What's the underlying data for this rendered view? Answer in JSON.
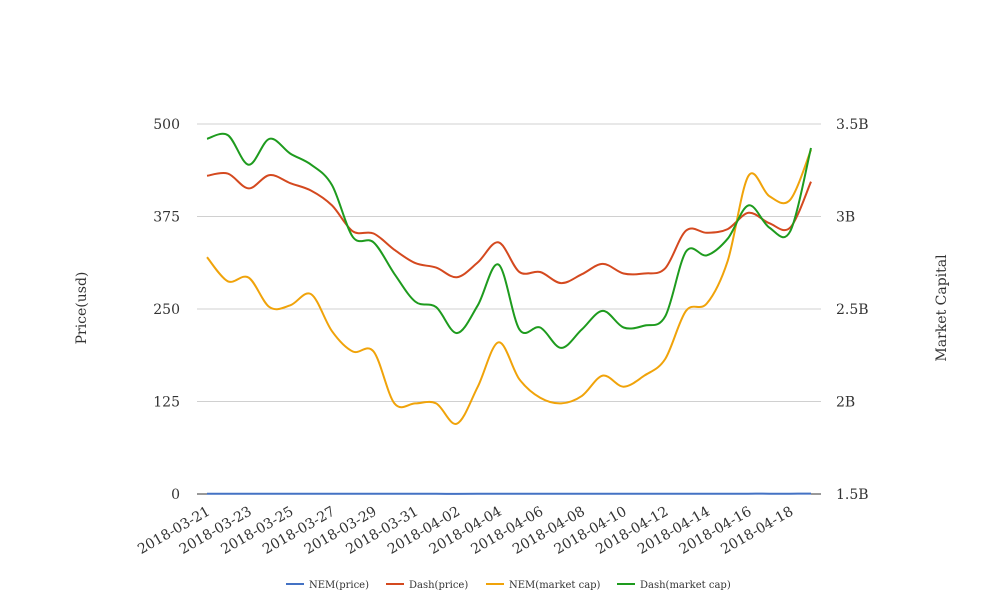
{
  "chart_data": {
    "type": "line",
    "x": [
      "2018-03-21",
      "2018-03-22",
      "2018-03-23",
      "2018-03-24",
      "2018-03-25",
      "2018-03-26",
      "2018-03-27",
      "2018-03-28",
      "2018-03-29",
      "2018-03-30",
      "2018-03-31",
      "2018-04-01",
      "2018-04-02",
      "2018-04-03",
      "2018-04-04",
      "2018-04-05",
      "2018-04-06",
      "2018-04-07",
      "2018-04-08",
      "2018-04-09",
      "2018-04-10",
      "2018-04-11",
      "2018-04-12",
      "2018-04-13",
      "2018-04-14",
      "2018-04-15",
      "2018-04-16",
      "2018-04-17",
      "2018-04-18",
      "2018-04-19"
    ],
    "x_tick_labels": [
      "2018-03-21",
      "2018-03-23",
      "2018-03-25",
      "2018-03-27",
      "2018-03-29",
      "2018-03-31",
      "2018-04-02",
      "2018-04-04",
      "2018-04-06",
      "2018-04-08",
      "2018-04-10",
      "2018-04-12",
      "2018-04-14",
      "2018-04-16",
      "2018-04-18"
    ],
    "ylabel": "Price(usd)",
    "y2label": "Market Capital",
    "ylim": [
      0,
      500
    ],
    "y2lim": [
      1500000000,
      3500000000
    ],
    "y_ticks": [
      "0",
      "125",
      "250",
      "375",
      "500"
    ],
    "y2_ticks": [
      "1.5B",
      "2B",
      "2.5B",
      "3B",
      "3.5B"
    ],
    "grid": true,
    "legend_position": "bottom",
    "series": [
      {
        "name": "NEM(price)",
        "axis": "left",
        "color": "#4472c4",
        "values": [
          0.38,
          0.37,
          0.36,
          0.34,
          0.35,
          0.34,
          0.31,
          0.26,
          0.26,
          0.22,
          0.21,
          0.21,
          0.2,
          0.23,
          0.28,
          0.24,
          0.22,
          0.21,
          0.22,
          0.25,
          0.24,
          0.25,
          0.27,
          0.33,
          0.34,
          0.41,
          0.47,
          0.43,
          0.42,
          0.5
        ]
      },
      {
        "name": "Dash(price)",
        "axis": "left",
        "color": "#d4491f",
        "values": [
          430,
          433,
          413,
          431,
          420,
          410,
          390,
          355,
          352,
          330,
          312,
          306,
          293,
          313,
          340,
          300,
          300,
          285,
          297,
          311,
          298,
          298,
          305,
          356,
          353,
          358,
          380,
          366,
          360,
          422
        ]
      },
      {
        "name": "NEM(market cap)",
        "axis": "right",
        "color": "#f0a30a",
        "values": [
          2780000000,
          2650000000,
          2670000000,
          2510000000,
          2520000000,
          2580000000,
          2380000000,
          2270000000,
          2270000000,
          1990000000,
          1990000000,
          1990000000,
          1880000000,
          2080000000,
          2320000000,
          2120000000,
          2020000000,
          1990000000,
          2030000000,
          2140000000,
          2080000000,
          2140000000,
          2230000000,
          2490000000,
          2530000000,
          2760000000,
          3220000000,
          3110000000,
          3090000000,
          3360000000
        ]
      },
      {
        "name": "Dash(market cap)",
        "axis": "right",
        "color": "#1e9b1e",
        "values": [
          3420000000,
          3440000000,
          3280000000,
          3420000000,
          3340000000,
          3280000000,
          3170000000,
          2890000000,
          2860000000,
          2690000000,
          2540000000,
          2510000000,
          2370000000,
          2520000000,
          2740000000,
          2390000000,
          2400000000,
          2290000000,
          2390000000,
          2490000000,
          2400000000,
          2410000000,
          2460000000,
          2810000000,
          2790000000,
          2880000000,
          3060000000,
          2940000000,
          2920000000,
          3370000000
        ]
      }
    ]
  }
}
